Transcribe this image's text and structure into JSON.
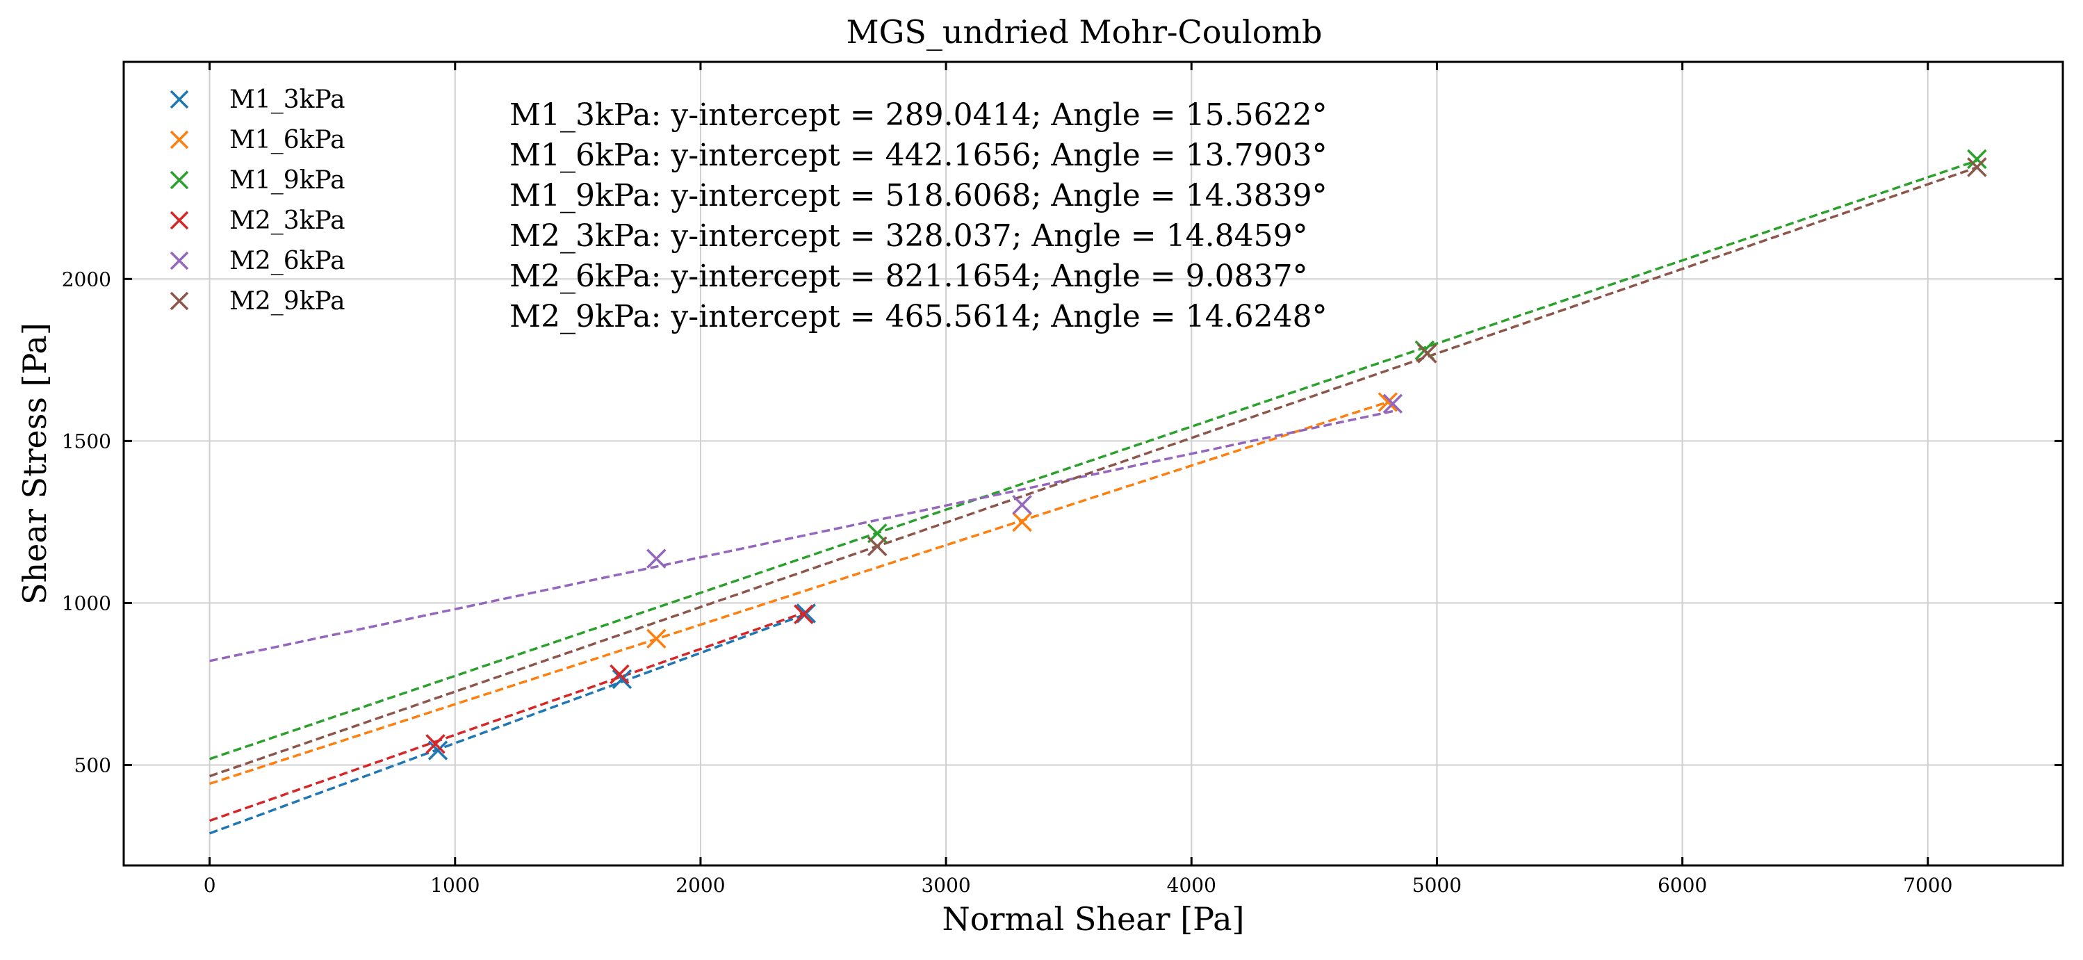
{
  "chart_data": {
    "type": "scatter",
    "title": "MGS_undried Mohr-Coulomb",
    "xlabel": "Normal Shear [Pa]",
    "ylabel": "Shear Stress [Pa]",
    "xlim": [
      -350,
      7550
    ],
    "ylim": [
      190,
      2670
    ],
    "xticks": [
      0,
      1000,
      2000,
      3000,
      4000,
      5000,
      6000,
      7000
    ],
    "yticks": [
      500,
      1000,
      1500,
      2000
    ],
    "grid": true,
    "legend_position": "top-left",
    "marker": "x",
    "line_style": "dashed",
    "series": [
      {
        "name": "M1_3kPa",
        "color": "#1f77b4",
        "points": [
          [
            930,
            545
          ],
          [
            1680,
            765
          ],
          [
            2430,
            968
          ]
        ],
        "fit": {
          "intercept": 289.0414,
          "angle_deg": 15.5622,
          "x_range": [
            0,
            2430
          ]
        }
      },
      {
        "name": "M1_6kPa",
        "color": "#ff7f0e",
        "points": [
          [
            1820,
            890
          ],
          [
            3310,
            1250
          ],
          [
            4800,
            1620
          ]
        ],
        "fit": {
          "intercept": 442.1656,
          "angle_deg": 13.7903,
          "x_range": [
            0,
            4800
          ]
        }
      },
      {
        "name": "M1_9kPa",
        "color": "#2ca02c",
        "points": [
          [
            2720,
            1215
          ],
          [
            4950,
            1780
          ],
          [
            7200,
            2370
          ]
        ],
        "fit": {
          "intercept": 518.6068,
          "angle_deg": 14.3839,
          "x_range": [
            0,
            7200
          ]
        }
      },
      {
        "name": "M2_3kPa",
        "color": "#d62728",
        "points": [
          [
            920,
            565
          ],
          [
            1670,
            780
          ],
          [
            2420,
            965
          ]
        ],
        "fit": {
          "intercept": 328.037,
          "angle_deg": 14.8459,
          "x_range": [
            0,
            2420
          ]
        }
      },
      {
        "name": "M2_6kPa",
        "color": "#9467bd",
        "points": [
          [
            1820,
            1137
          ],
          [
            3310,
            1303
          ],
          [
            4820,
            1615
          ]
        ],
        "fit": {
          "intercept": 821.1654,
          "angle_deg": 9.0837,
          "x_range": [
            0,
            4820
          ]
        }
      },
      {
        "name": "M2_9kPa",
        "color": "#8c564b",
        "points": [
          [
            2720,
            1175
          ],
          [
            4960,
            1770
          ],
          [
            7200,
            2345
          ]
        ],
        "fit": {
          "intercept": 465.5614,
          "angle_deg": 14.6248,
          "x_range": [
            0,
            7200
          ]
        }
      }
    ],
    "annotations": [
      "M1_3kPa: y-intercept = 289.0414; Angle = 15.5622°",
      "M1_6kPa: y-intercept = 442.1656; Angle = 13.7903°",
      "M1_9kPa: y-intercept = 518.6068; Angle = 14.3839°",
      "M2_3kPa: y-intercept = 328.037; Angle = 14.8459°",
      "M2_6kPa: y-intercept = 821.1654; Angle = 9.0837°",
      "M2_9kPa: y-intercept = 465.5614; Angle = 14.6248°"
    ]
  }
}
